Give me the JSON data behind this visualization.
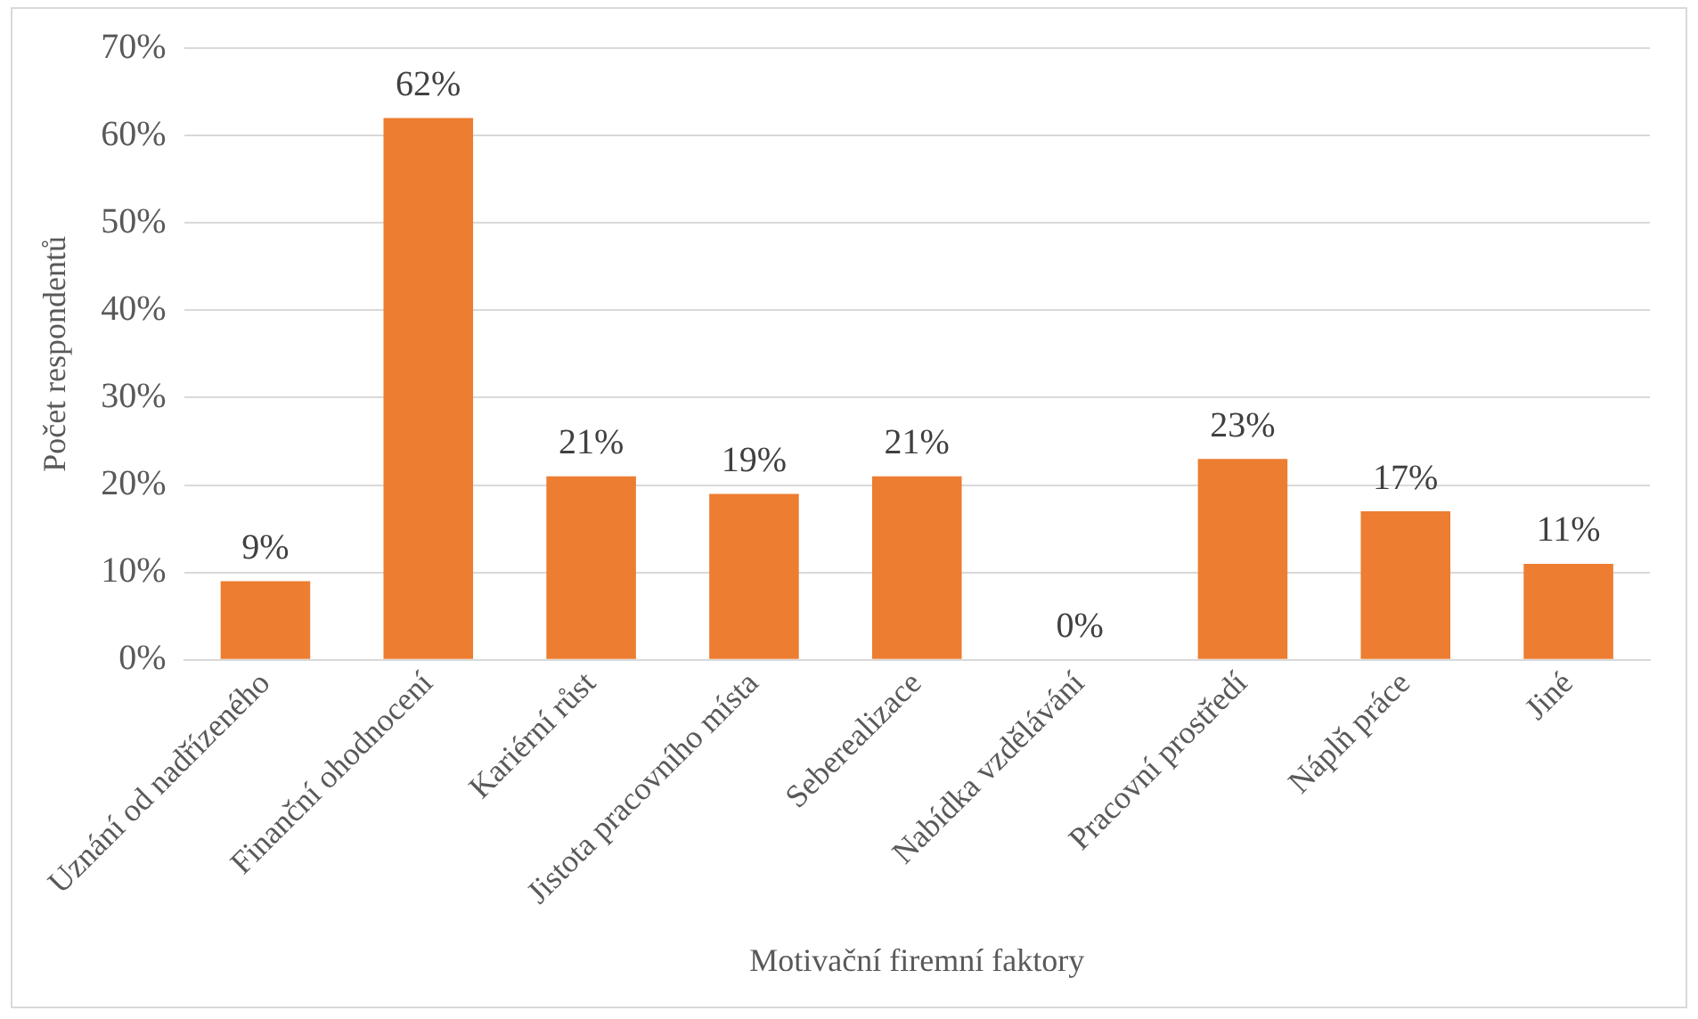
{
  "chart_data": {
    "type": "bar",
    "xlabel": "Motivační firemní faktory",
    "ylabel": "Počet respondentů",
    "categories": [
      "Uznání od nadřízeného",
      "Finanční ohodnocení",
      "Kariérní růst",
      "Jistota pracovního místa",
      "Seberealizace",
      "Nabídka vzdělávání",
      "Pracovní prostředí",
      "Náplň práce",
      "Jiné"
    ],
    "values": [
      9,
      62,
      21,
      19,
      21,
      0,
      23,
      17,
      11
    ],
    "value_labels": [
      "9%",
      "62%",
      "21%",
      "19%",
      "21%",
      "0%",
      "23%",
      "17%",
      "11%"
    ],
    "color": "#ed7d31",
    "ylim": [
      0,
      70
    ],
    "yticks": [
      {
        "value": 0,
        "label": "0%"
      },
      {
        "value": 10,
        "label": "10%"
      },
      {
        "value": 20,
        "label": "20%"
      },
      {
        "value": 30,
        "label": "30%"
      },
      {
        "value": 40,
        "label": "40%"
      },
      {
        "value": 50,
        "label": "50%"
      },
      {
        "value": 60,
        "label": "60%"
      },
      {
        "value": 70,
        "label": "70%"
      }
    ],
    "grid": "y",
    "legend": false
  }
}
